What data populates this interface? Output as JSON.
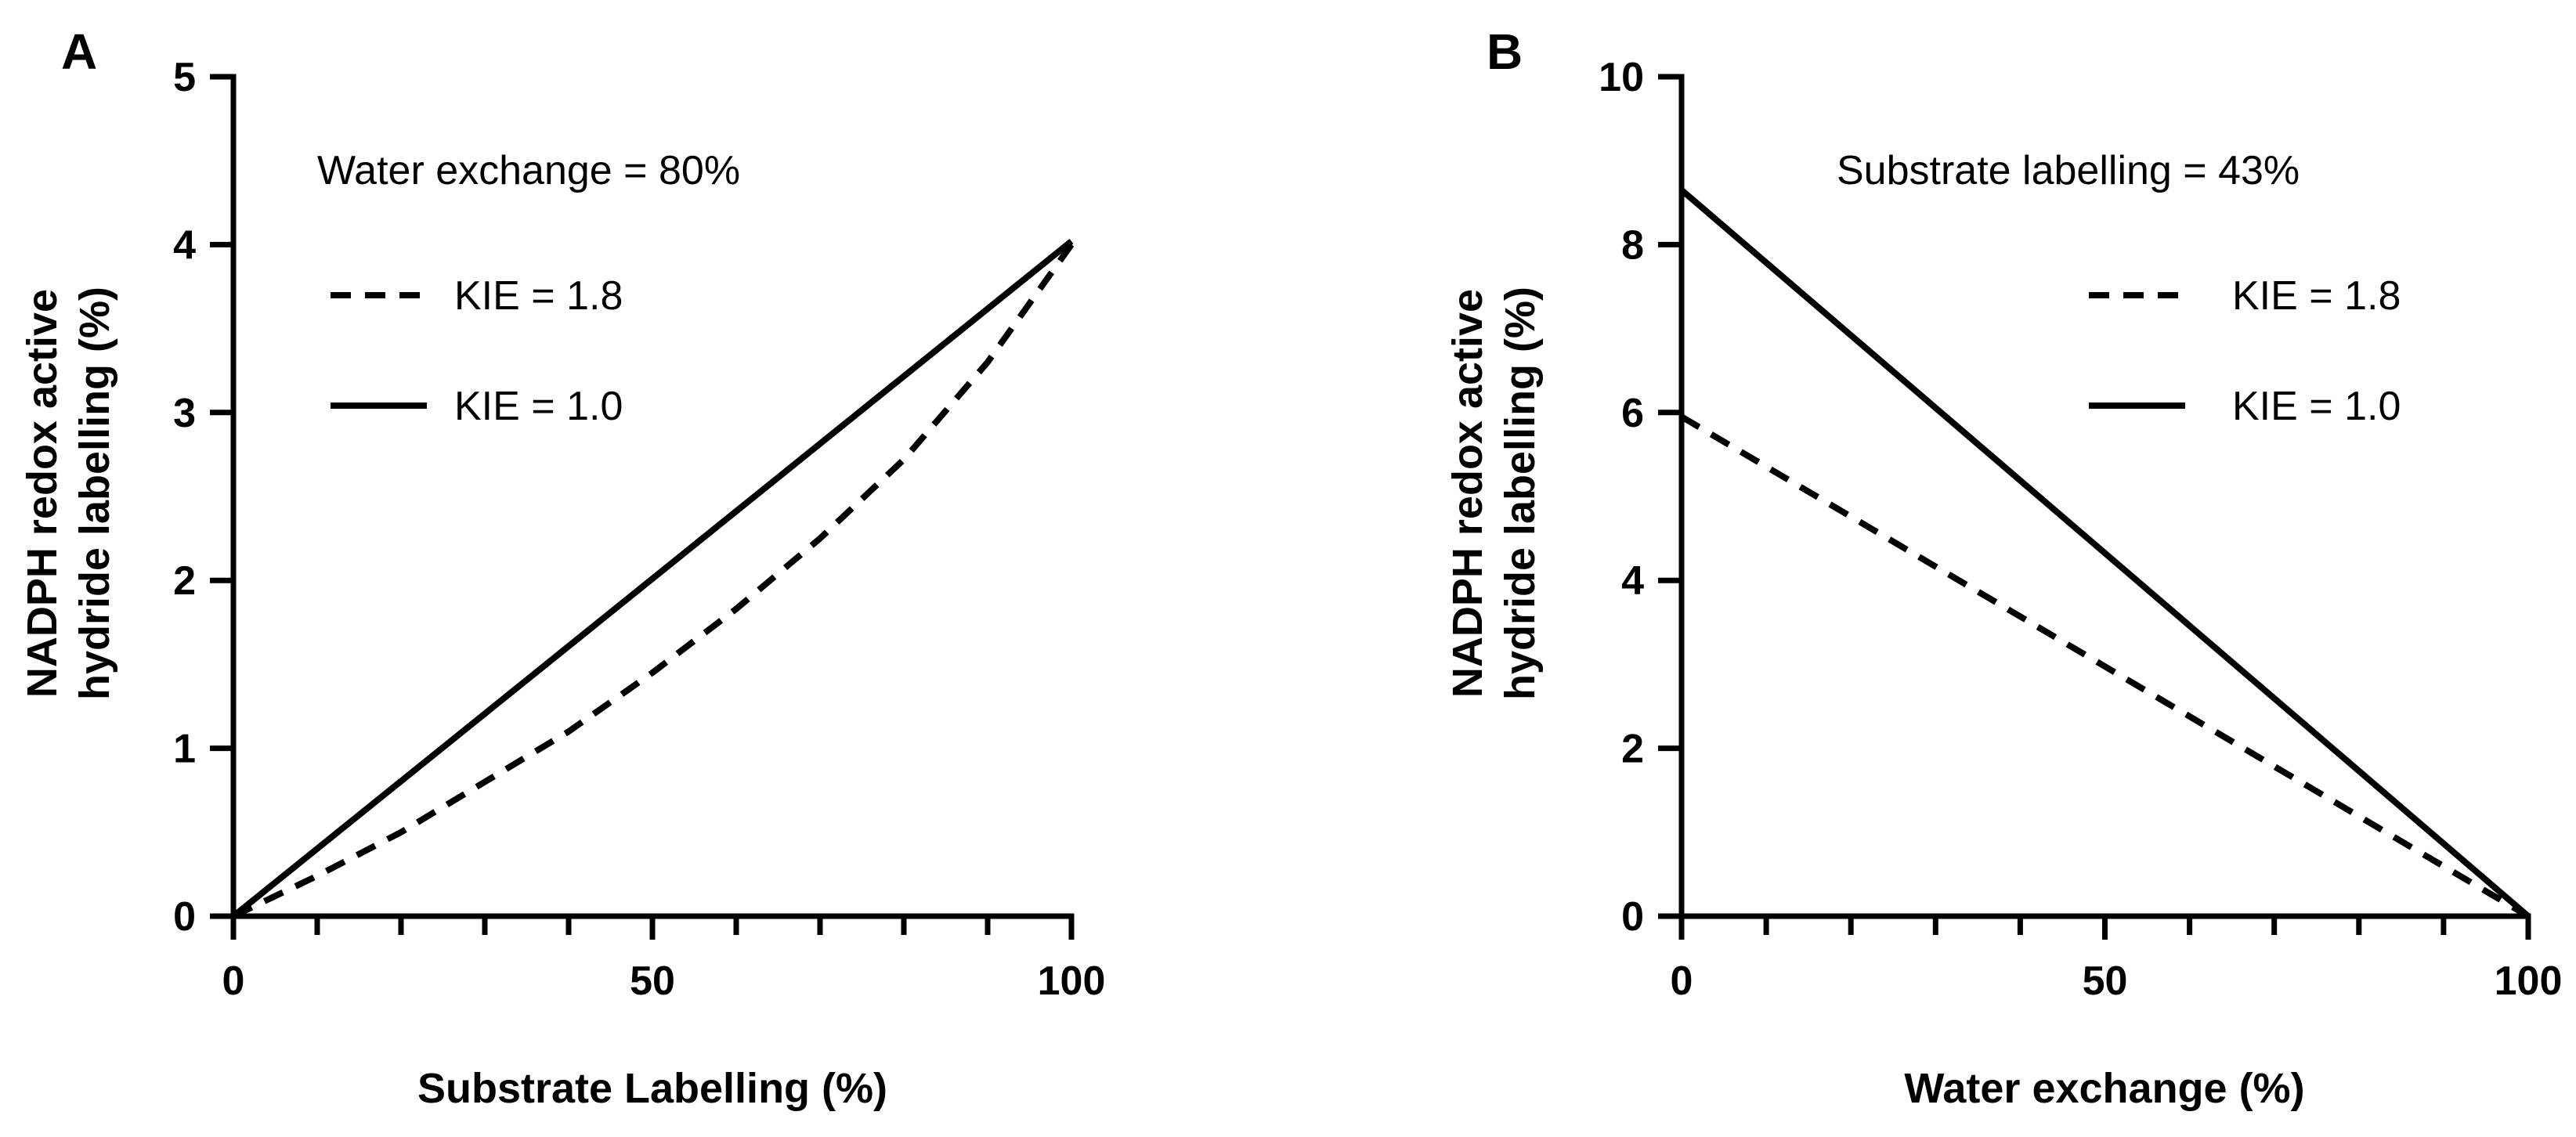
{
  "chart_data": [
    {
      "panel": "A",
      "type": "line",
      "title": "",
      "annotation": "Water exchange = 80%",
      "xlabel": "Substrate Labelling (%)",
      "ylabel_lines": [
        "NADPH redox active",
        "hydride labelling (%)"
      ],
      "xlim": [
        0,
        100
      ],
      "ylim": [
        0,
        5
      ],
      "x_ticks": [
        0,
        50,
        100
      ],
      "y_ticks": [
        0,
        1,
        2,
        3,
        4,
        5
      ],
      "x_minor_step": 10,
      "series": [
        {
          "name": "KIE = 1.8",
          "style": "dashed",
          "x": [
            0,
            10,
            20,
            30,
            40,
            50,
            60,
            70,
            80,
            90,
            100
          ],
          "y": [
            0,
            0.24,
            0.5,
            0.8,
            1.1,
            1.45,
            1.83,
            2.25,
            2.72,
            3.3,
            4.0
          ]
        },
        {
          "name": "KIE = 1.0",
          "style": "solid",
          "x": [
            0,
            100
          ],
          "y": [
            0,
            4.02
          ]
        }
      ],
      "legend": [
        {
          "label": "KIE = 1.8",
          "style": "dashed"
        },
        {
          "label": "KIE = 1.0",
          "style": "solid"
        }
      ]
    },
    {
      "panel": "B",
      "type": "line",
      "title": "",
      "annotation": "Substrate labelling = 43%",
      "xlabel": "Water exchange (%)",
      "ylabel_lines": [
        "NADPH redox active",
        "hydride labelling (%)"
      ],
      "xlim": [
        0,
        100
      ],
      "ylim": [
        0,
        10
      ],
      "x_ticks": [
        0,
        50,
        100
      ],
      "y_ticks": [
        0,
        2,
        4,
        6,
        8,
        10
      ],
      "x_minor_step": 10,
      "series": [
        {
          "name": "KIE = 1.8",
          "style": "dashed",
          "x": [
            0,
            100
          ],
          "y": [
            5.95,
            0
          ]
        },
        {
          "name": "KIE = 1.0",
          "style": "solid",
          "x": [
            0,
            100
          ],
          "y": [
            8.65,
            0
          ]
        }
      ],
      "legend": [
        {
          "label": "KIE = 1.8",
          "style": "dashed"
        },
        {
          "label": "KIE = 1.0",
          "style": "solid"
        }
      ]
    }
  ]
}
